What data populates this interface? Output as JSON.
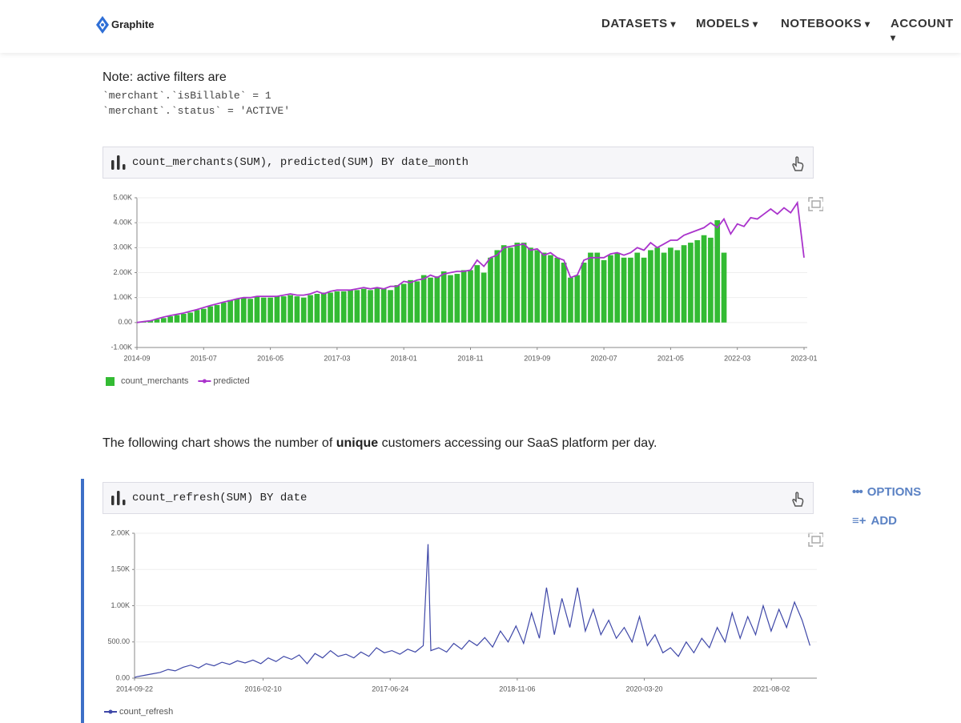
{
  "header": {
    "logo": "Graphite",
    "nav": [
      "DATASETS",
      "MODELS",
      "NOTEBOOKS",
      "ACCOUNT"
    ]
  },
  "note": {
    "title": "Note: active filters are",
    "filters": [
      "`merchant`.`isBillable` = 1",
      "`merchant`.`status` = 'ACTIVE'"
    ]
  },
  "paragraph": [
    "The following chart shows the number of ",
    "unique",
    " customers accessing our SaaS platform per day."
  ],
  "sidebar": [
    "OPTIONS",
    "ADD"
  ],
  "chart_data": [
    {
      "type": "bar-line",
      "title": "count_merchants(SUM), predicted(SUM) BY date_month",
      "categories": [
        "2014-09",
        "2014-10",
        "2014-11",
        "2014-12",
        "2015-01",
        "2015-02",
        "2015-03",
        "2015-04",
        "2015-05",
        "2015-06",
        "2015-07",
        "2015-08",
        "2015-09",
        "2015-10",
        "2015-11",
        "2015-12",
        "2016-01",
        "2016-02",
        "2016-03",
        "2016-04",
        "2016-05",
        "2016-06",
        "2016-07",
        "2016-08",
        "2016-09",
        "2016-10",
        "2016-11",
        "2016-12",
        "2017-01",
        "2017-02",
        "2017-03",
        "2017-04",
        "2017-05",
        "2017-06",
        "2017-07",
        "2017-08",
        "2017-09",
        "2017-10",
        "2017-11",
        "2017-12",
        "2018-01",
        "2018-02",
        "2018-03",
        "2018-04",
        "2018-05",
        "2018-06",
        "2018-07",
        "2018-08",
        "2018-09",
        "2018-10",
        "2018-11",
        "2018-12",
        "2019-01",
        "2019-02",
        "2019-03",
        "2019-04",
        "2019-05",
        "2019-06",
        "2019-07",
        "2019-08",
        "2019-09",
        "2019-10",
        "2019-11",
        "2019-12",
        "2020-01",
        "2020-02",
        "2020-03",
        "2020-04",
        "2020-05",
        "2020-06",
        "2020-07",
        "2020-08",
        "2020-09",
        "2020-10",
        "2020-11",
        "2020-12",
        "2021-01",
        "2021-02",
        "2021-03",
        "2021-04",
        "2021-05",
        "2021-06",
        "2021-07",
        "2021-08",
        "2021-09",
        "2021-10",
        "2021-11",
        "2021-12",
        "2022-01",
        "2022-02",
        "2022-03",
        "2022-04",
        "2022-05",
        "2022-06",
        "2022-07",
        "2022-08",
        "2022-09",
        "2022-10",
        "2022-11",
        "2022-12",
        "2023-01"
      ],
      "xticks": [
        "2014-09",
        "2015-07",
        "2016-05",
        "2017-03",
        "2018-01",
        "2018-11",
        "2019-09",
        "2020-07",
        "2021-05",
        "2022-03",
        "2023-01"
      ],
      "series": [
        {
          "name": "count_merchants",
          "kind": "bar",
          "color": "#33bb33",
          "values": [
            0,
            30,
            80,
            130,
            180,
            250,
            300,
            350,
            400,
            500,
            550,
            650,
            700,
            800,
            900,
            950,
            1000,
            950,
            1050,
            1000,
            1000,
            1050,
            1050,
            1100,
            1050,
            1000,
            1100,
            1150,
            1200,
            1200,
            1250,
            1250,
            1300,
            1300,
            1350,
            1300,
            1400,
            1350,
            1300,
            1500,
            1550,
            1700,
            1650,
            1900,
            1800,
            1850,
            2050,
            1900,
            1950,
            2100,
            2100,
            2300,
            2000,
            2600,
            2900,
            3100,
            3000,
            3200,
            3200,
            3000,
            2900,
            2800,
            2700,
            2600,
            2400,
            1800,
            1900,
            2400,
            2800,
            2800,
            2500,
            2700,
            2800,
            2600,
            2600,
            2800,
            2600,
            2900,
            3000,
            2800,
            3000,
            2900,
            3100,
            3200,
            3300,
            3500,
            3400,
            4100,
            2800,
            null,
            null,
            null,
            null,
            null,
            null,
            null,
            null,
            null,
            null,
            null,
            null
          ]
        },
        {
          "name": "predicted",
          "kind": "line",
          "color": "#aa33cc",
          "values": [
            0,
            40,
            70,
            150,
            220,
            280,
            330,
            380,
            450,
            520,
            600,
            680,
            750,
            820,
            880,
            950,
            1000,
            1000,
            1050,
            1050,
            1050,
            1050,
            1100,
            1150,
            1100,
            1100,
            1150,
            1250,
            1150,
            1250,
            1300,
            1300,
            1300,
            1350,
            1400,
            1350,
            1400,
            1350,
            1450,
            1450,
            1650,
            1600,
            1700,
            1750,
            1900,
            1800,
            1950,
            2000,
            2050,
            2050,
            2100,
            2500,
            2250,
            2600,
            2700,
            3000,
            3050,
            3100,
            3150,
            2900,
            2950,
            2700,
            2800,
            2600,
            2500,
            1800,
            1900,
            2500,
            2600,
            2600,
            2600,
            2750,
            2800,
            2700,
            2800,
            3000,
            2900,
            3200,
            3000,
            3150,
            3300,
            3300,
            3500,
            3600,
            3700,
            3800,
            4000,
            3800,
            4150,
            3550,
            3950,
            3850,
            4200,
            4150,
            4350,
            4550,
            4350,
            4600,
            4400,
            4800,
            2600
          ]
        }
      ],
      "ylim": [
        -1000,
        5000
      ],
      "yticks": [
        {
          "value": -1000,
          "label": "-1.00K"
        },
        {
          "value": 0,
          "label": "0.00"
        },
        {
          "value": 1000,
          "label": "1.00K"
        },
        {
          "value": 2000,
          "label": "2.00K"
        },
        {
          "value": 3000,
          "label": "3.00K"
        },
        {
          "value": 4000,
          "label": "4.00K"
        },
        {
          "value": 5000,
          "label": "5.00K"
        }
      ],
      "grid": true
    },
    {
      "type": "line",
      "title": "count_refresh(SUM) BY date",
      "x": [
        "2014-09-22",
        "2014-10-01",
        "2014-11-01",
        "2014-12-01",
        "2015-01-01",
        "2015-02-01",
        "2015-03-01",
        "2015-04-01",
        "2015-05-01",
        "2015-06-01",
        "2015-07-01",
        "2015-08-01",
        "2015-09-01",
        "2015-10-01",
        "2015-11-01",
        "2015-12-01",
        "2016-01-01",
        "2016-02-01",
        "2016-03-01",
        "2016-04-01",
        "2016-05-01",
        "2016-06-01",
        "2016-07-01",
        "2016-08-01",
        "2016-09-01",
        "2016-10-01",
        "2016-11-01",
        "2016-12-01",
        "2017-01-01",
        "2017-02-01",
        "2017-03-01",
        "2017-04-01",
        "2017-05-01",
        "2017-06-01",
        "2017-07-01",
        "2017-08-01",
        "2017-09-01",
        "2017-10-01",
        "2017-11-01",
        "2017-11-20",
        "2017-12-01",
        "2018-01-01",
        "2018-02-01",
        "2018-03-01",
        "2018-04-01",
        "2018-05-01",
        "2018-06-01",
        "2018-07-01",
        "2018-08-01",
        "2018-09-01",
        "2018-10-01",
        "2018-11-01",
        "2018-12-01",
        "2019-01-01",
        "2019-02-01",
        "2019-03-01",
        "2019-04-01",
        "2019-05-01",
        "2019-06-01",
        "2019-07-01",
        "2019-08-01",
        "2019-09-01",
        "2019-10-01",
        "2019-11-01",
        "2019-12-01",
        "2020-01-01",
        "2020-02-01",
        "2020-03-01",
        "2020-04-01",
        "2020-05-01",
        "2020-06-01",
        "2020-07-01",
        "2020-08-01",
        "2020-09-01",
        "2020-10-01",
        "2020-11-01",
        "2020-12-01",
        "2021-01-01",
        "2021-02-01",
        "2021-03-01",
        "2021-04-01",
        "2021-05-01",
        "2021-06-01",
        "2021-07-01",
        "2021-08-01",
        "2021-09-01",
        "2021-10-01",
        "2021-11-01",
        "2021-12-01",
        "2022-01-01"
      ],
      "series": [
        {
          "name": "count_refresh",
          "color": "#3f48a8",
          "values": [
            10,
            20,
            40,
            60,
            80,
            120,
            100,
            150,
            180,
            140,
            200,
            170,
            220,
            190,
            240,
            210,
            250,
            200,
            280,
            230,
            300,
            260,
            320,
            200,
            340,
            280,
            380,
            300,
            330,
            280,
            360,
            300,
            420,
            350,
            380,
            330,
            400,
            360,
            450,
            1850,
            380,
            420,
            360,
            480,
            400,
            520,
            450,
            560,
            430,
            650,
            500,
            720,
            480,
            900,
            550,
            1250,
            600,
            1100,
            700,
            1250,
            650,
            950,
            600,
            800,
            550,
            700,
            500,
            850,
            450,
            600,
            350,
            420,
            300,
            500,
            350,
            550,
            420,
            700,
            500,
            900,
            550,
            850,
            600,
            1000,
            650,
            950,
            700,
            1050,
            800,
            450
          ]
        }
      ],
      "xlim": [
        "2014-09-22",
        "2022-01-28"
      ],
      "xticks": [
        "2014-09-22",
        "2016-02-10",
        "2017-06-24",
        "2018-11-06",
        "2020-03-20",
        "2021-08-02"
      ],
      "ylim": [
        0,
        2000
      ],
      "yticks": [
        {
          "value": 0,
          "label": "0.00"
        },
        {
          "value": 500,
          "label": "500.00"
        },
        {
          "value": 1000,
          "label": "1.00K"
        },
        {
          "value": 1500,
          "label": "1.50K"
        },
        {
          "value": 2000,
          "label": "2.00K"
        }
      ],
      "grid": true
    }
  ]
}
